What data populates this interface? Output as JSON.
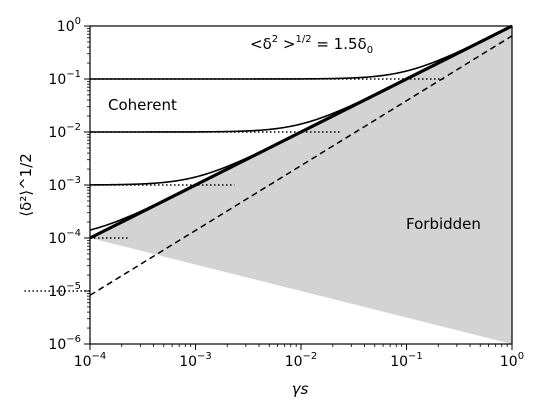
{
  "chart_data": {
    "type": "line",
    "title": "",
    "xlabel": "γs",
    "ylabel": "⟨δ²⟩^1/2",
    "xscale": "log",
    "yscale": "log",
    "xlim": [
      0.0001,
      1
    ],
    "ylim": [
      1e-06,
      1
    ],
    "grid": false,
    "x_ticks": [
      {
        "base": "10",
        "exp": "−4",
        "value": 0.0001
      },
      {
        "base": "10",
        "exp": "−3",
        "value": 0.001
      },
      {
        "base": "10",
        "exp": "−2",
        "value": 0.01
      },
      {
        "base": "10",
        "exp": "−1",
        "value": 0.1
      },
      {
        "base": "10",
        "exp": "0",
        "value": 1
      }
    ],
    "y_ticks": [
      {
        "base": "10",
        "exp": "−6",
        "value": 1e-06
      },
      {
        "base": "10",
        "exp": "−5",
        "value": 1e-05
      },
      {
        "base": "10",
        "exp": "−4",
        "value": 0.0001
      },
      {
        "base": "10",
        "exp": "−3",
        "value": 0.001
      },
      {
        "base": "10",
        "exp": "−2",
        "value": 0.01
      },
      {
        "base": "10",
        "exp": "−1",
        "value": 0.1
      },
      {
        "base": "10",
        "exp": "0",
        "value": 1
      }
    ],
    "initial_amplitudes": [
      0.1,
      0.01,
      0.001,
      0.0001,
      1e-05
    ],
    "boundary": {
      "description": "y = x",
      "x": [
        0.0001,
        1
      ],
      "y": [
        0.0001,
        1
      ]
    },
    "dashed_line": {
      "x": [
        0.0001,
        1
      ],
      "y": [
        8.3e-06,
        0.65
      ]
    },
    "annotations": {
      "coherent": "Coherent",
      "forbidden": "Forbidden",
      "dashed_lhs": "<δ",
      "dashed_sup1": "2",
      "dashed_mid": " >",
      "dashed_sup2": "1/2",
      "dashed_rhs": " = 1.5δ",
      "dashed_sub": "0"
    },
    "colors": {
      "line": "#000000",
      "forbidden_fill": "#d3d3d3"
    }
  }
}
